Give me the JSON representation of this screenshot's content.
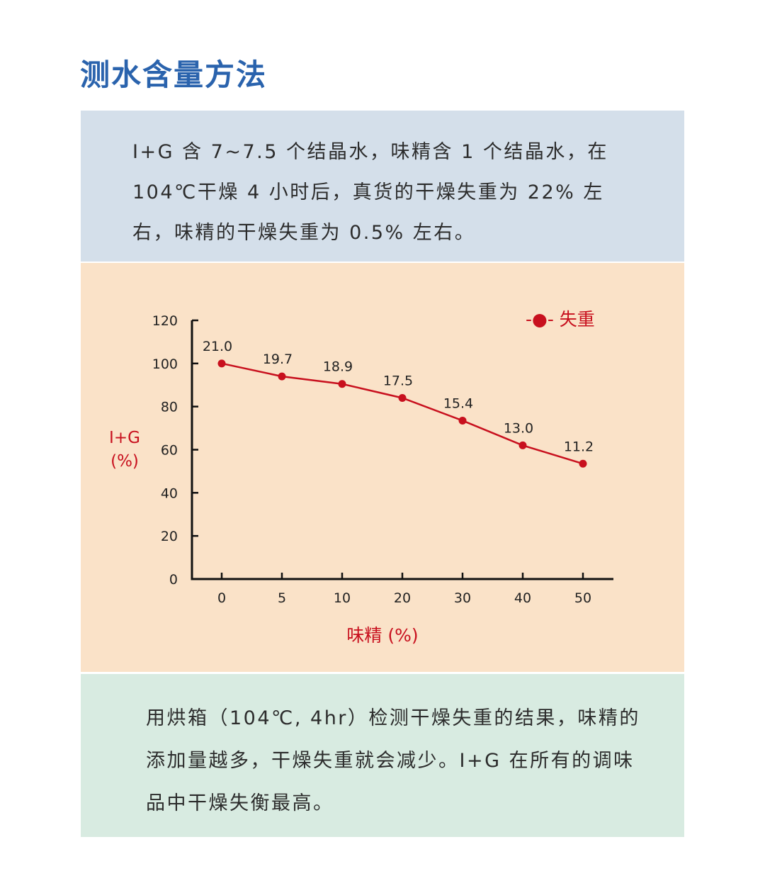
{
  "page": {
    "title": "测水含量方法",
    "intro": "I+G 含 7~7.5 个结晶水，味精含 1 个结晶水，在 104℃干燥 4 小时后，真货的干燥失重为 22% 左右，味精的干燥失重为 0.5% 左右。",
    "conclusion": "用烘箱（104℃, 4hr）检测干燥失重的结果，味精的添加量越多，干燥失重就会减少。I+G 在所有的调味品中干燥失衡最高。"
  },
  "colors": {
    "title": "#2a63ad",
    "series": "#c8101e",
    "panel_top": "#d4dfea",
    "panel_mid": "#fae2c8",
    "panel_bot": "#d8ebe1"
  },
  "chart_data": {
    "type": "line",
    "title": "",
    "xlabel": "味精 (%)",
    "ylabel_line1": "I+G",
    "ylabel_line2": "(%)",
    "categories": [
      "0",
      "5",
      "10",
      "20",
      "30",
      "40",
      "50"
    ],
    "yticks": [
      0,
      20,
      40,
      60,
      80,
      100,
      120
    ],
    "ylim": [
      0,
      120
    ],
    "grid": false,
    "legend_position": "top-right",
    "series": [
      {
        "name": "失重",
        "legend_label": "-●- 失重",
        "values": [
          100,
          94,
          90.5,
          84,
          73.5,
          62,
          53.5
        ],
        "labels": [
          "21.0",
          "19.7",
          "18.9",
          "17.5",
          "15.4",
          "13.0",
          "11.2"
        ]
      }
    ]
  }
}
